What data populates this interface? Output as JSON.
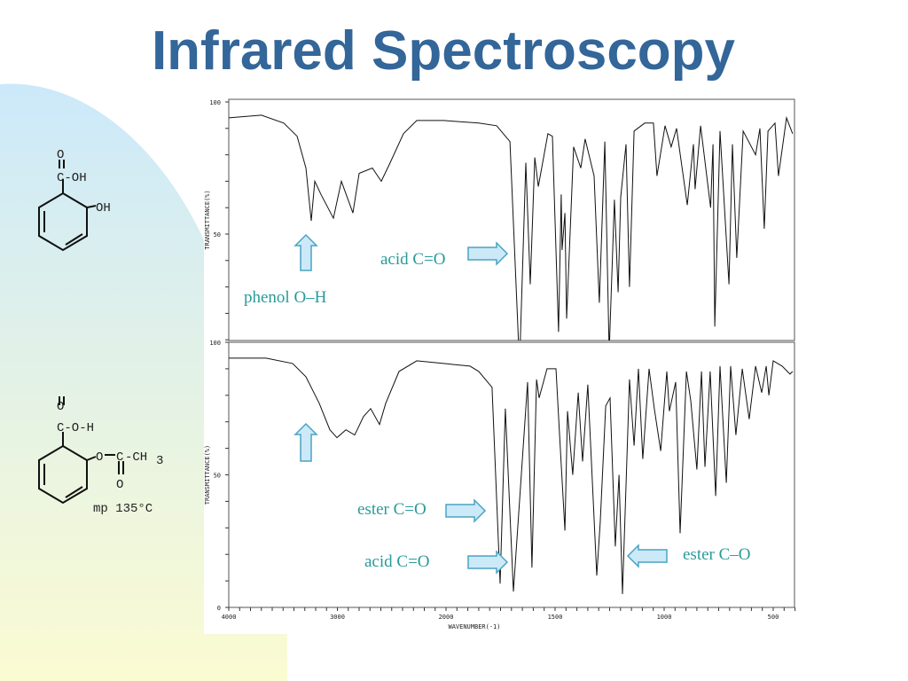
{
  "slide": {
    "title": "Infrared Spectroscopy",
    "colors": {
      "title": "#336699",
      "annotation": "#2a9a9a",
      "arrow_fill": "#cce9f8",
      "arrow_stroke": "#4aa3c4",
      "spectrum": "#111111"
    }
  },
  "structures": {
    "salicylic_acid": {
      "carbonyl_o": "O",
      "acid_group": "C-OH",
      "phenol": "OH"
    },
    "aspirin": {
      "carbonyl_o": "O",
      "acid_group": "C-O-H",
      "ester_link": "O",
      "ester_c": "C",
      "methyl": "-CH",
      "methyl_sub": "3",
      "ester_o": "O",
      "mp": "mp 135°C"
    }
  },
  "annotations": {
    "phenol_oh": "phenol O–H",
    "acid_co_top": "acid C=O",
    "ester_co": "ester C=O",
    "acid_co_bottom": "acid C=O",
    "ester_c_o": "ester C–O"
  },
  "chart_data": [
    {
      "type": "line",
      "xlabel": "",
      "ylabel": "TRANSMITTANCE(%)",
      "xlim": [
        4000,
        400
      ],
      "ylim": [
        10,
        100
      ],
      "yticks": [
        "100",
        "50"
      ],
      "x_scale": "linear, expanded 2x below 2000",
      "grid": false,
      "series": [
        {
          "points": [
            [
              4000,
              94
            ],
            [
              3700,
              95
            ],
            [
              3494,
              92
            ],
            [
              3371,
              87
            ],
            [
              3290,
              75
            ],
            [
              3241,
              55
            ],
            [
              3208,
              70
            ],
            [
              3151,
              65
            ],
            [
              3037,
              56
            ],
            [
              2963,
              70
            ],
            [
              2857,
              58
            ],
            [
              2800,
              73
            ],
            [
              2678,
              75
            ],
            [
              2596,
              70
            ],
            [
              2514,
              77
            ],
            [
              2392,
              88
            ],
            [
              2269,
              93
            ],
            [
              2024,
              93
            ],
            [
              1850,
              92
            ],
            [
              1768,
              91
            ],
            [
              1707,
              85
            ],
            [
              1663,
              0
            ],
            [
              1634,
              77
            ],
            [
              1614,
              31
            ],
            [
              1593,
              79
            ],
            [
              1577,
              68
            ],
            [
              1533,
              88
            ],
            [
              1512,
              87
            ],
            [
              1484,
              13
            ],
            [
              1472,
              65
            ],
            [
              1468,
              44
            ],
            [
              1455,
              58
            ],
            [
              1447,
              18
            ],
            [
              1415,
              83
            ],
            [
              1382,
              75
            ],
            [
              1362,
              86
            ],
            [
              1321,
              72
            ],
            [
              1297,
              24
            ],
            [
              1272,
              85
            ],
            [
              1252,
              5
            ],
            [
              1228,
              63
            ],
            [
              1211,
              28
            ],
            [
              1199,
              64
            ],
            [
              1175,
              84
            ],
            [
              1159,
              30
            ],
            [
              1138,
              89
            ],
            [
              1089,
              92
            ],
            [
              1049,
              92
            ],
            [
              1033,
              72
            ],
            [
              996,
              91
            ],
            [
              968,
              83
            ],
            [
              943,
              90
            ],
            [
              894,
              61
            ],
            [
              866,
              84
            ],
            [
              858,
              67
            ],
            [
              833,
              91
            ],
            [
              787,
              60
            ],
            [
              776,
              84
            ],
            [
              768,
              15
            ],
            [
              744,
              89
            ],
            [
              703,
              31
            ],
            [
              687,
              84
            ],
            [
              667,
              41
            ],
            [
              638,
              89
            ],
            [
              581,
              80
            ],
            [
              561,
              90
            ],
            [
              541,
              52
            ],
            [
              524,
              89
            ],
            [
              492,
              92
            ],
            [
              476,
              72
            ],
            [
              439,
              94
            ],
            [
              411,
              88
            ]
          ]
        }
      ]
    },
    {
      "type": "line",
      "xlabel": "WAVENUMBER(-1)",
      "ylabel": "TRANSMITTANCE(%)",
      "xlim": [
        4000,
        400
      ],
      "ylim": [
        0,
        100
      ],
      "yticks": [
        "100",
        "50",
        "0"
      ],
      "xticks": [
        "4000",
        "3000",
        "2000",
        "1500",
        "1000",
        "500"
      ],
      "x_scale": "linear, expanded 2x below 2000",
      "grid": false,
      "series": [
        {
          "points": [
            [
              4000,
              94
            ],
            [
              3657,
              94
            ],
            [
              3412,
              92
            ],
            [
              3290,
              87
            ],
            [
              3167,
              77
            ],
            [
              3069,
              67
            ],
            [
              3004,
              64
            ],
            [
              2922,
              67
            ],
            [
              2841,
              65
            ],
            [
              2759,
              72
            ],
            [
              2694,
              75
            ],
            [
              2612,
              69
            ],
            [
              2555,
              77
            ],
            [
              2433,
              89
            ],
            [
              2269,
              93
            ],
            [
              2024,
              92
            ],
            [
              1890,
              91
            ],
            [
              1850,
              89
            ],
            [
              1789,
              83
            ],
            [
              1752,
              9
            ],
            [
              1728,
              75
            ],
            [
              1691,
              6
            ],
            [
              1626,
              85
            ],
            [
              1606,
              15
            ],
            [
              1585,
              86
            ],
            [
              1573,
              79
            ],
            [
              1537,
              90
            ],
            [
              1496,
              90
            ],
            [
              1480,
              66
            ],
            [
              1455,
              29
            ],
            [
              1443,
              74
            ],
            [
              1419,
              50
            ],
            [
              1394,
              81
            ],
            [
              1374,
              55
            ],
            [
              1350,
              84
            ],
            [
              1309,
              12
            ],
            [
              1293,
              32
            ],
            [
              1268,
              76
            ],
            [
              1248,
              79
            ],
            [
              1224,
              23
            ],
            [
              1207,
              50
            ],
            [
              1191,
              5
            ],
            [
              1159,
              86
            ],
            [
              1138,
              61
            ],
            [
              1118,
              90
            ],
            [
              1098,
              56
            ],
            [
              1069,
              90
            ],
            [
              1045,
              75
            ],
            [
              1016,
              59
            ],
            [
              988,
              89
            ],
            [
              976,
              74
            ],
            [
              947,
              85
            ],
            [
              927,
              28
            ],
            [
              898,
              89
            ],
            [
              878,
              78
            ],
            [
              850,
              52
            ],
            [
              829,
              89
            ],
            [
              813,
              53
            ],
            [
              789,
              89
            ],
            [
              764,
              42
            ],
            [
              744,
              91
            ],
            [
              715,
              47
            ],
            [
              695,
              91
            ],
            [
              671,
              65
            ],
            [
              642,
              90
            ],
            [
              610,
              71
            ],
            [
              581,
              91
            ],
            [
              553,
              81
            ],
            [
              532,
              91
            ],
            [
              520,
              80
            ],
            [
              500,
              93
            ],
            [
              459,
              91
            ],
            [
              423,
              88
            ],
            [
              411,
              89
            ]
          ]
        }
      ]
    }
  ]
}
